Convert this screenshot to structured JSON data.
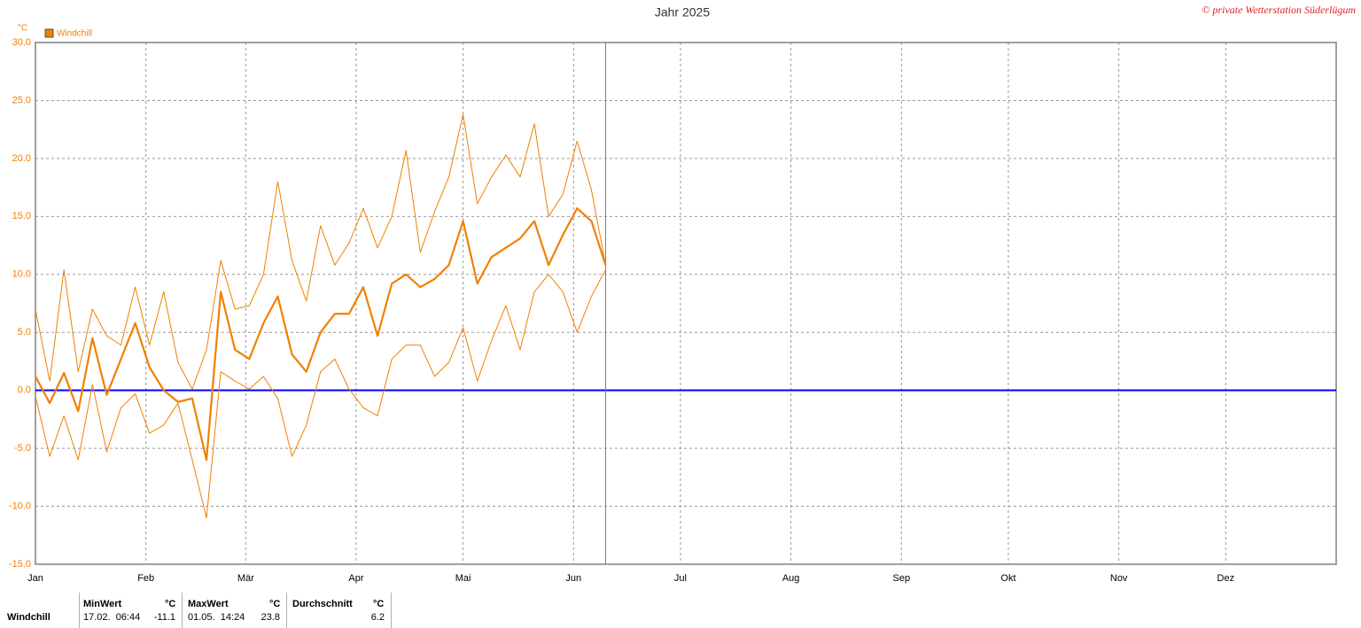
{
  "chart_data": {
    "type": "line",
    "title": "Jahr 2025",
    "credit": "© private Wetterstation Süderlügum",
    "y_unit": "°C",
    "x": [
      0,
      4,
      8,
      12,
      16,
      20,
      24,
      28,
      32,
      36,
      40,
      44,
      48,
      52,
      56,
      60,
      64,
      68,
      72,
      76,
      80,
      84,
      88,
      92,
      96,
      100,
      104,
      108,
      112,
      116,
      120,
      124,
      128,
      132,
      136,
      140,
      144,
      148,
      152,
      156,
      160
    ],
    "series": [
      {
        "name": "Windchill",
        "color": "#f08000",
        "width": 2.2,
        "values": [
          1.2,
          -1.1,
          1.5,
          -1.8,
          4.5,
          -0.4,
          2.7,
          5.8,
          2,
          0,
          -1,
          -0.7,
          -6,
          8.5,
          3.5,
          2.7,
          5.8,
          8.1,
          3.1,
          1.6,
          5,
          6.6,
          6.6,
          8.9,
          4.7,
          9.2,
          10,
          8.9,
          9.6,
          10.8,
          14.6,
          9.2,
          11.5,
          12.3,
          13.1,
          14.6,
          10.8,
          13.4,
          15.7,
          14.6,
          10.8
        ]
      },
      {
        "color": "#f08000",
        "width": 1,
        "values": [
          7,
          0.8,
          10.4,
          1.6,
          7,
          4.7,
          3.9,
          8.9,
          3.9,
          8.5,
          2.4,
          0.1,
          3.5,
          11.2,
          7,
          7.3,
          10,
          18,
          11.2,
          7.7,
          14.2,
          10.8,
          12.7,
          15.7,
          12.3,
          15,
          20.7,
          11.9,
          15.4,
          18.4,
          23.8,
          16.1,
          18.4,
          20.3,
          18.4,
          23,
          15,
          16.9,
          21.5,
          17.3,
          10.8
        ]
      },
      {
        "color": "#f08000",
        "width": 1,
        "values": [
          -0.5,
          -5.7,
          -2.2,
          -6,
          0.5,
          -5.3,
          -1.5,
          -0.3,
          -3.7,
          -3,
          -1.1,
          -6,
          -11,
          1.6,
          0.8,
          0.1,
          1.2,
          -0.7,
          -5.7,
          -3,
          1.6,
          2.7,
          0.1,
          -1.5,
          -2.2,
          2.7,
          3.9,
          3.9,
          1.2,
          2.4,
          5.4,
          0.8,
          4.3,
          7.3,
          3.5,
          8.5,
          10,
          8.5,
          5,
          8.1,
          10.4
        ]
      }
    ],
    "xlim": [
      0,
      365
    ],
    "xticks": [
      {
        "value": 0,
        "label": "Jan"
      },
      {
        "value": 31,
        "label": "Feb"
      },
      {
        "value": 59,
        "label": "Mär"
      },
      {
        "value": 90,
        "label": "Apr"
      },
      {
        "value": 120,
        "label": "Mai"
      },
      {
        "value": 151,
        "label": "Jun"
      },
      {
        "value": 181,
        "label": "Jul"
      },
      {
        "value": 212,
        "label": "Aug"
      },
      {
        "value": 243,
        "label": "Sep"
      },
      {
        "value": 273,
        "label": "Okt"
      },
      {
        "value": 304,
        "label": "Nov"
      },
      {
        "value": 334,
        "label": "Dez"
      }
    ],
    "ylim": [
      -15,
      30
    ],
    "yticks": [
      {
        "value": -15,
        "label": "-15.0"
      },
      {
        "value": -10,
        "label": "-10.0"
      },
      {
        "value": -5,
        "label": "-5.0"
      },
      {
        "value": 0,
        "label": "0.0"
      },
      {
        "value": 5,
        "label": "5.0"
      },
      {
        "value": 10,
        "label": "10.0"
      },
      {
        "value": 15,
        "label": "15.0"
      },
      {
        "value": 20,
        "label": "20.0"
      },
      {
        "value": 25,
        "label": "25.0"
      },
      {
        "value": 30,
        "label": "30.0"
      }
    ],
    "grid": true,
    "reference_line": {
      "value": 0,
      "color": "#0000ff"
    }
  },
  "stats_table": {
    "row_label": "Windchill",
    "columns": [
      {
        "header": "MinWert",
        "unit": "°C",
        "time": "17.02.  06:44",
        "value": -11.1
      },
      {
        "header": "MaxWert",
        "unit": "°C",
        "time": "01.05.  14:24",
        "value": 23.8
      },
      {
        "header": "Durchschnitt",
        "unit": "°C",
        "value": 6.2
      }
    ]
  }
}
